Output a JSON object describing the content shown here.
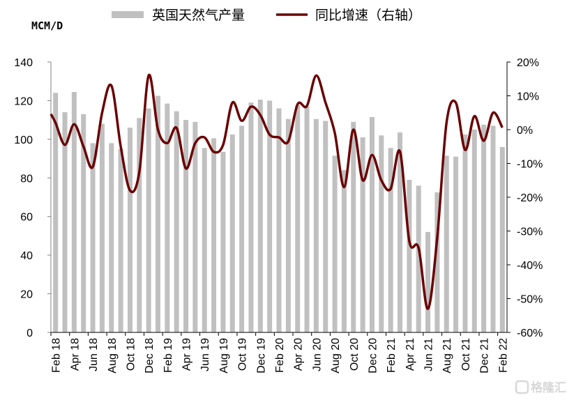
{
  "chart_data": {
    "type": "bar+line",
    "left_axis_unit": "MCM/D",
    "ylim_left": [
      0,
      140
    ],
    "yticks_left": [
      0,
      20,
      40,
      60,
      80,
      100,
      120,
      140
    ],
    "ylim_right": [
      -60,
      20
    ],
    "yticks_right": [
      "20%",
      "10%",
      "0%",
      "-10%",
      "-20%",
      "-30%",
      "-40%",
      "-50%",
      "-60%"
    ],
    "x_tick_labels": [
      "Feb 18",
      "Apr 18",
      "Jun 18",
      "Aug 18",
      "Oct 18",
      "Dec 18",
      "Feb 19",
      "Apr 19",
      "Jun 19",
      "Aug 19",
      "Oct 19",
      "Dec 19",
      "Feb 20",
      "Apr 20",
      "Jun 20",
      "Aug 20",
      "Oct 20",
      "Dec 20",
      "Feb 21",
      "Apr 21",
      "Jun 21",
      "Aug 21",
      "Oct 21",
      "Dec 21",
      "Feb 22"
    ],
    "x_period": "monthly, Feb 18 to Feb 22",
    "grid": false,
    "legend_placement": "top",
    "series": [
      {
        "name": "英国天然气产量",
        "type": "bar",
        "axis": "left",
        "color": "#c0c0c0",
        "values": [
          124,
          114,
          124.5,
          113,
          98,
          108,
          98,
          95,
          106,
          111,
          116,
          122.5,
          118.5,
          114.5,
          110,
          109,
          95.5,
          100.5,
          93.5,
          102.5,
          107,
          119,
          120.5,
          120,
          116,
          110.5,
          117.5,
          117,
          110.5,
          109.5,
          91.5,
          84,
          109,
          101,
          111.5,
          102,
          95.5,
          103.5,
          79,
          76,
          52,
          72.5,
          91.5,
          91,
          102.5,
          105,
          107.5,
          107,
          96
        ]
      },
      {
        "name": "同比增速（右轴）",
        "type": "line",
        "axis": "right",
        "unit": "%",
        "color": "#6b0000",
        "values": [
          2,
          -4.5,
          1.6,
          -5,
          -11,
          5,
          13,
          -5,
          -18,
          -12.5,
          16,
          0,
          -4,
          0.5,
          -11.5,
          -4,
          -2.3,
          -6.6,
          -4.5,
          8,
          2.6,
          6.8,
          4.3,
          -1.5,
          -2.3,
          -3.5,
          7.5,
          7,
          16,
          8,
          -1,
          -17,
          0,
          -15,
          -7.5,
          -15,
          -17.5,
          -6.5,
          -33,
          -35,
          -53,
          -32,
          2,
          8,
          -6,
          4,
          -3.3,
          5,
          0.6
        ]
      }
    ]
  },
  "watermark": "格隆汇"
}
